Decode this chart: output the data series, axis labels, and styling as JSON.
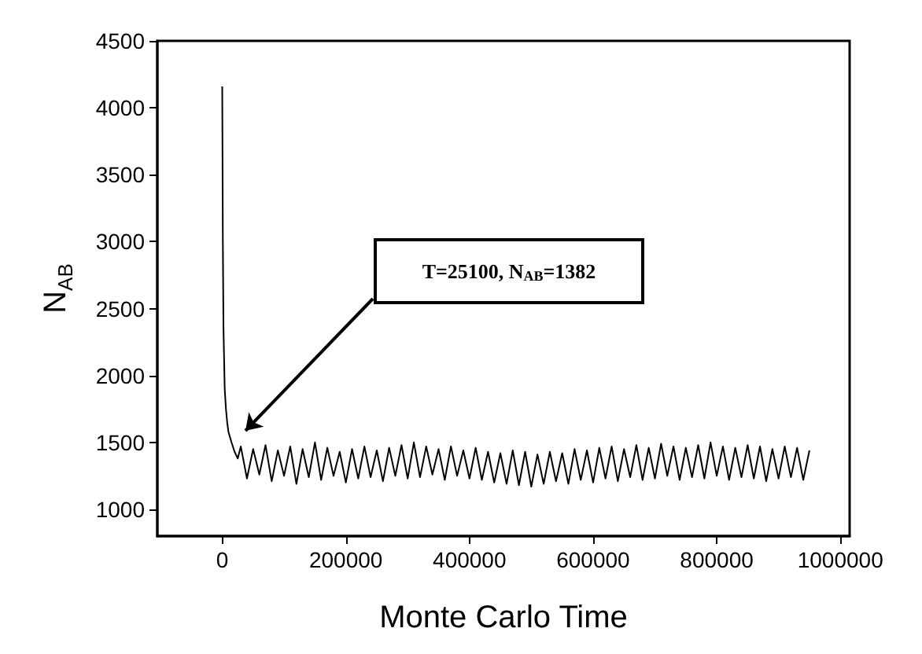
{
  "chart_data": {
    "type": "line",
    "xlabel": "Monte Carlo Time",
    "ylabel": "N$_{AB}$",
    "x": [
      0,
      1000,
      2000,
      4000,
      6000,
      8000,
      10000,
      15000,
      20000,
      25100,
      30000,
      40000,
      50000,
      60000,
      70000,
      80000,
      90000,
      100000,
      110000,
      120000,
      130000,
      140000,
      150000,
      160000,
      170000,
      180000,
      190000,
      200000,
      210000,
      220000,
      230000,
      240000,
      250000,
      260000,
      270000,
      280000,
      290000,
      300000,
      310000,
      320000,
      330000,
      340000,
      350000,
      360000,
      370000,
      380000,
      390000,
      400000,
      410000,
      420000,
      430000,
      440000,
      450000,
      460000,
      470000,
      480000,
      490000,
      500000,
      510000,
      520000,
      530000,
      540000,
      550000,
      560000,
      570000,
      580000,
      590000,
      600000,
      610000,
      620000,
      630000,
      640000,
      650000,
      660000,
      670000,
      680000,
      690000,
      700000,
      710000,
      720000,
      730000,
      740000,
      750000,
      760000,
      770000,
      780000,
      790000,
      800000,
      810000,
      820000,
      830000,
      840000,
      850000,
      860000,
      870000,
      880000,
      890000,
      900000,
      910000,
      920000,
      930000,
      940000,
      950000
    ],
    "series": [
      {
        "color": "#000000",
        "values": [
          4160,
          3000,
          2350,
          1900,
          1750,
          1650,
          1580,
          1500,
          1430,
          1380,
          1470,
          1230,
          1450,
          1260,
          1480,
          1210,
          1440,
          1250,
          1470,
          1190,
          1450,
          1240,
          1500,
          1220,
          1460,
          1250,
          1430,
          1200,
          1450,
          1230,
          1470,
          1240,
          1440,
          1210,
          1460,
          1250,
          1480,
          1230,
          1500,
          1240,
          1470,
          1260,
          1450,
          1220,
          1470,
          1250,
          1440,
          1230,
          1460,
          1220,
          1430,
          1200,
          1420,
          1190,
          1440,
          1180,
          1430,
          1170,
          1410,
          1190,
          1430,
          1210,
          1420,
          1190,
          1450,
          1220,
          1440,
          1200,
          1460,
          1230,
          1470,
          1210,
          1450,
          1240,
          1480,
          1220,
          1460,
          1230,
          1490,
          1250,
          1470,
          1220,
          1460,
          1240,
          1480,
          1230,
          1500,
          1250,
          1470,
          1220,
          1460,
          1240,
          1480,
          1230,
          1470,
          1210,
          1450,
          1230,
          1470,
          1240,
          1460,
          1220,
          1440
        ]
      }
    ],
    "xlim": [
      -105000,
      1015000
    ],
    "xticks": [
      0,
      200000,
      400000,
      600000,
      800000,
      1000000
    ],
    "ylim": [
      800,
      4500
    ],
    "yticks": [
      1000,
      1500,
      2000,
      2500,
      3000,
      3500,
      4000,
      4500
    ],
    "grid": false,
    "marker": "none",
    "line_style": "solid",
    "annotations": [
      "T=25100, N$_{AB}$=1382"
    ]
  }
}
